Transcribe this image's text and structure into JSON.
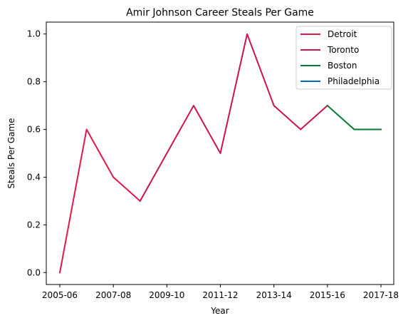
{
  "chart_data": {
    "type": "line",
    "title": "Amir Johnson Career Steals Per Game",
    "xlabel": "Year",
    "ylabel": "Steals Per Game",
    "ylim": [
      -0.05,
      1.05
    ],
    "x_tick_labels": [
      "2005-06",
      "2007-08",
      "2009-10",
      "2011-12",
      "2013-14",
      "2015-16",
      "2017-18"
    ],
    "y_ticks": [
      0.0,
      0.2,
      0.4,
      0.6,
      0.8,
      1.0
    ],
    "y_tick_labels": [
      "0.0",
      "0.2",
      "0.4",
      "0.6",
      "0.8",
      "1.0"
    ],
    "x": [
      "2005-06",
      "2006-07",
      "2007-08",
      "2008-09",
      "2009-10",
      "2010-11",
      "2011-12",
      "2012-13",
      "2013-14",
      "2014-15",
      "2015-16",
      "2016-17",
      "2017-18"
    ],
    "legend_position": "top-right",
    "grid": false,
    "series": [
      {
        "name": "Detroit",
        "color": "#e0194a",
        "x": [
          "2005-06",
          "2006-07",
          "2007-08",
          "2008-09"
        ],
        "values": [
          0.0,
          0.6,
          0.4,
          0.3
        ]
      },
      {
        "name": "Toronto",
        "color": "#c8164b",
        "x": [
          "2008-09",
          "2009-10",
          "2010-11",
          "2011-12",
          "2012-13",
          "2013-14",
          "2014-15",
          "2015-16"
        ],
        "values": [
          0.3,
          0.5,
          0.7,
          0.5,
          1.0,
          0.7,
          0.6,
          0.7
        ]
      },
      {
        "name": "Boston",
        "color": "#007a33",
        "x": [
          "2015-16",
          "2016-17",
          "2017-18"
        ],
        "values": [
          0.7,
          0.6,
          0.6
        ]
      },
      {
        "name": "Philadelphia",
        "color": "#006bb6",
        "x": [],
        "values": []
      }
    ]
  }
}
